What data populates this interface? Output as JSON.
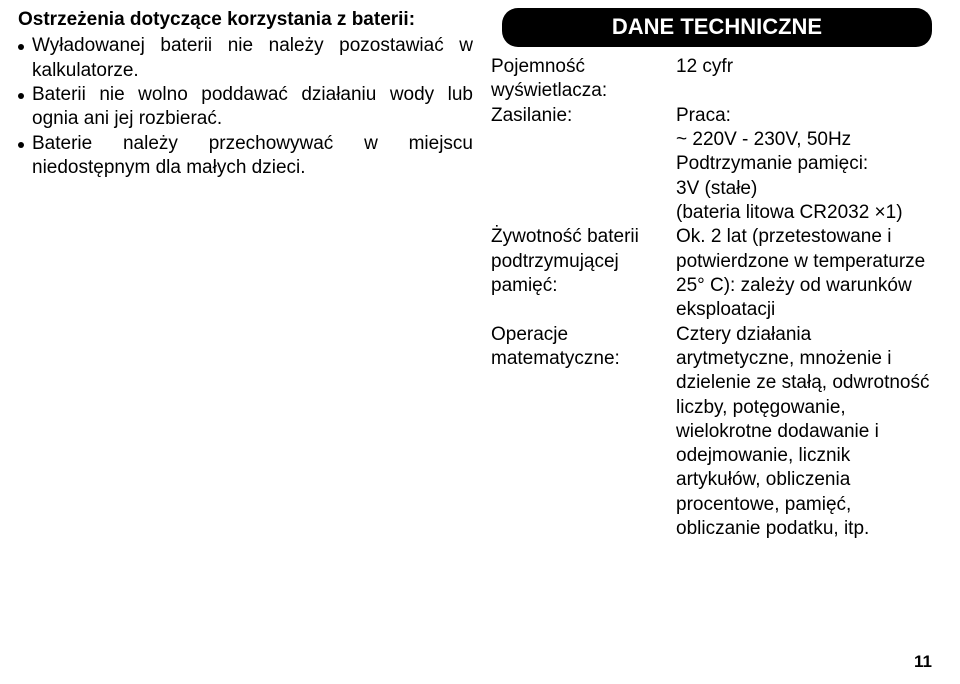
{
  "left": {
    "title": "Ostrzeżenia dotyczące korzystania z baterii:",
    "bullets": [
      "Wyładowanej baterii nie należy pozostawiać w kalkulatorze.",
      "Baterii nie wolno poddawać działaniu wody lub ognia ani jej rozbierać.",
      "Baterie należy przechowywać w miejscu niedostępnym dla małych dzieci."
    ]
  },
  "right": {
    "heading": "DANE TECHNICZNE",
    "rows": [
      {
        "label": "Pojemność wyświetlacza:",
        "value": "12 cyfr"
      },
      {
        "label": "Zasilanie:",
        "value": "Praca:\n~ 220V - 230V, 50Hz\nPodtrzymanie pamięci:\n3V (stałe)\n(bateria litowa CR2032 ×1)"
      },
      {
        "label": "Żywotność baterii podtrzymującej pamięć:",
        "value": "Ok. 2 lat (przetestowane i potwierdzone w temperaturze 25° C): zależy od warunków eksploatacji"
      },
      {
        "label": "Operacje matematyczne:",
        "value": "Cztery działania arytmetyczne, mnożenie i dzielenie ze stałą, odwrotność liczby, potęgowanie, wielokrotne dodawanie i odejmowanie, licznik artykułów, obliczenia procentowe, pamięć, obliczanie podatku, itp."
      }
    ]
  },
  "pageNumber": "11"
}
